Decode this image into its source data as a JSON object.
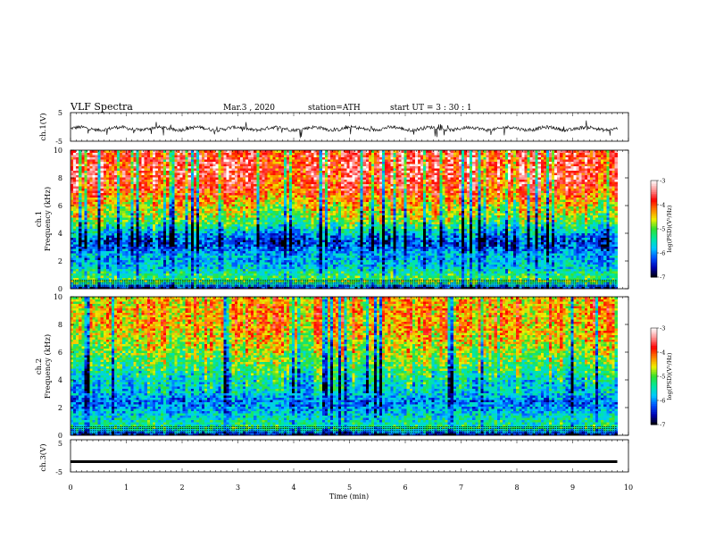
{
  "header": {
    "title": "VLF  Spectra",
    "date": "Mar.3  , 2020",
    "station": "station=ATH",
    "start": "start  UT  =   3  : 30 : 1"
  },
  "chart_data": [
    {
      "type": "line",
      "panel": "ch1-waveform",
      "ylabel": "ch.1(V)",
      "ylim": [
        -5,
        5
      ],
      "yticks": [
        "5",
        "-5"
      ],
      "xlim": [
        0,
        10
      ],
      "baseline_v": -0.6,
      "description_values": "noisy waveform fluctuating around about -0.6 V with spikes reaching roughly -3 V to 2 V"
    },
    {
      "type": "heatmap",
      "panel": "ch1-spectrogram",
      "ylabel_line1": "ch.1",
      "ylabel_line2": "Frequency (kHz)",
      "ylim": [
        0,
        10
      ],
      "yticks": [
        "0",
        "2",
        "4",
        "6",
        "8",
        "10"
      ],
      "xlim": [
        0,
        10
      ],
      "zlim": [
        -7,
        -3
      ],
      "colorbar_label": "log(PSD)(V²/Hz)",
      "colorbar_ticks": [
        "-3",
        "-4",
        "-5",
        "-6",
        "-7"
      ],
      "frequency_profile_khz": [
        0,
        0.5,
        1,
        1.5,
        2,
        2.5,
        3,
        3.5,
        4,
        4.5,
        5,
        6,
        7,
        8,
        9,
        10
      ],
      "frequency_profile_logpsd": [
        -6.8,
        -5.0,
        -5.2,
        -5.6,
        -5.8,
        -5.8,
        -6.2,
        -6.3,
        -5.9,
        -5.4,
        -4.9,
        -4.6,
        -4.0,
        -3.7,
        -3.7,
        -3.8
      ]
    },
    {
      "type": "heatmap",
      "panel": "ch2-spectrogram",
      "ylabel_line1": "ch.2",
      "ylabel_line2": "Frequency (kHz)",
      "ylim": [
        0,
        10
      ],
      "yticks": [
        "0",
        "2",
        "4",
        "6",
        "8",
        "10"
      ],
      "xlim": [
        0,
        10
      ],
      "zlim": [
        -7,
        -3
      ],
      "colorbar_label": "log(PSD)(V²/Hz)",
      "colorbar_ticks": [
        "-3",
        "-4",
        "-5",
        "-6",
        "-7"
      ],
      "frequency_profile_khz": [
        0,
        0.5,
        1,
        1.5,
        2,
        2.5,
        3,
        3.5,
        4,
        5,
        6,
        7,
        8,
        9,
        10
      ],
      "frequency_profile_logpsd": [
        -6.8,
        -5.3,
        -5.4,
        -5.6,
        -5.9,
        -6.1,
        -5.7,
        -5.6,
        -5.5,
        -5.1,
        -4.8,
        -4.5,
        -4.3,
        -4.3,
        -4.4
      ]
    },
    {
      "type": "line",
      "panel": "ch3-waveform",
      "ylabel": "ch.3(V)",
      "ylim": [
        -5,
        5
      ],
      "yticks": [
        "5",
        "-5"
      ],
      "xlim": [
        0,
        10
      ],
      "baseline_v": -1.8
    }
  ],
  "xaxis": {
    "label": "Time  (min)",
    "ticks": [
      "0",
      "1",
      "2",
      "3",
      "4",
      "5",
      "6",
      "7",
      "8",
      "9",
      "10"
    ],
    "data_end_min": 9.8
  },
  "colors": {
    "waveform": "#000000",
    "colormap": [
      "#000000",
      "#0000b0",
      "#0050ff",
      "#00c8ff",
      "#00e8a0",
      "#30e030",
      "#f0f000",
      "#ff8000",
      "#ff0000",
      "#ff9090",
      "#ffffff"
    ]
  }
}
